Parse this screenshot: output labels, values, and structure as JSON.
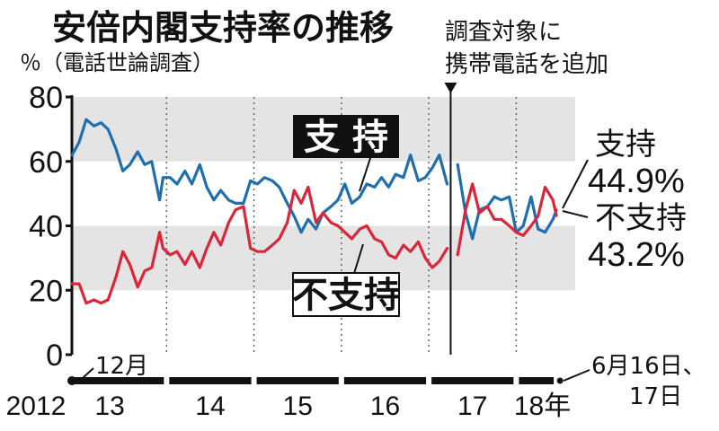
{
  "title": "安倍内閣支持率の推移",
  "subtitle": "％（電話世論調査）",
  "note_lines": [
    "調査対象に",
    "携帯電話を追加"
  ],
  "start_label": "12月",
  "end_label_lines": [
    "6月16日、",
    "17日"
  ],
  "colors": {
    "support": "#1f6faf",
    "nonsupport": "#d9263a",
    "band": "#e4e4e4",
    "axis": "#111111"
  },
  "chart_data": {
    "type": "line",
    "ylim": [
      0,
      80
    ],
    "yticks": [
      0,
      20,
      40,
      60,
      80
    ],
    "xlim": [
      2012.917,
      2018.5
    ],
    "xticks": [
      {
        "label": "2012",
        "x": 2012.5
      },
      {
        "label": "13",
        "x": 2013.35
      },
      {
        "label": "14",
        "x": 2014.5
      },
      {
        "label": "15",
        "x": 2015.5
      },
      {
        "label": "16",
        "x": 2016.5
      },
      {
        "label": "17",
        "x": 2017.5
      },
      {
        "label": "18年",
        "x": 2018.3
      }
    ],
    "year_boundaries": [
      2014,
      2015,
      2016,
      2017,
      2018
    ],
    "method_change_x": 2017.25,
    "series": [
      {
        "name": "支持",
        "box_label": "支 持",
        "end_value": "44.9%",
        "points": [
          [
            2012.92,
            62
          ],
          [
            2013.0,
            66
          ],
          [
            2013.08,
            73
          ],
          [
            2013.17,
            71
          ],
          [
            2013.25,
            72
          ],
          [
            2013.33,
            70
          ],
          [
            2013.42,
            64
          ],
          [
            2013.5,
            57
          ],
          [
            2013.58,
            59
          ],
          [
            2013.67,
            63
          ],
          [
            2013.75,
            59
          ],
          [
            2013.83,
            60
          ],
          [
            2013.92,
            48
          ],
          [
            2013.96,
            55
          ],
          [
            2014.04,
            55
          ],
          [
            2014.12,
            53
          ],
          [
            2014.21,
            57
          ],
          [
            2014.29,
            53
          ],
          [
            2014.38,
            59
          ],
          [
            2014.46,
            52
          ],
          [
            2014.54,
            48
          ],
          [
            2014.62,
            51
          ],
          [
            2014.71,
            48
          ],
          [
            2014.79,
            47
          ],
          [
            2014.88,
            47
          ],
          [
            2014.96,
            54
          ],
          [
            2015.04,
            53
          ],
          [
            2015.12,
            55
          ],
          [
            2015.21,
            54
          ],
          [
            2015.29,
            52
          ],
          [
            2015.38,
            47
          ],
          [
            2015.46,
            43
          ],
          [
            2015.54,
            38
          ],
          [
            2015.62,
            42
          ],
          [
            2015.71,
            39
          ],
          [
            2015.79,
            44
          ],
          [
            2015.88,
            46
          ],
          [
            2015.96,
            48
          ],
          [
            2016.04,
            53
          ],
          [
            2016.12,
            47
          ],
          [
            2016.21,
            49
          ],
          [
            2016.29,
            53
          ],
          [
            2016.38,
            52
          ],
          [
            2016.46,
            55
          ],
          [
            2016.54,
            52
          ],
          [
            2016.62,
            56
          ],
          [
            2016.71,
            55
          ],
          [
            2016.79,
            62
          ],
          [
            2016.88,
            54
          ],
          [
            2016.96,
            55
          ],
          [
            2017.04,
            58
          ],
          [
            2017.12,
            62
          ],
          [
            2017.21,
            53
          ],
          null,
          [
            2017.33,
            59
          ],
          [
            2017.42,
            44
          ],
          [
            2017.5,
            36
          ],
          [
            2017.58,
            45
          ],
          [
            2017.67,
            46
          ],
          [
            2017.75,
            49
          ],
          [
            2017.83,
            48
          ],
          [
            2017.92,
            49
          ],
          [
            2018.0,
            38
          ],
          [
            2018.08,
            40
          ],
          [
            2018.17,
            49
          ],
          [
            2018.25,
            39
          ],
          [
            2018.33,
            38
          ],
          [
            2018.42,
            42
          ],
          [
            2018.46,
            44.9
          ]
        ]
      },
      {
        "name": "不支持",
        "box_label": "不支持",
        "end_value": "43.2%",
        "points": [
          [
            2012.92,
            22
          ],
          [
            2013.0,
            22
          ],
          [
            2013.08,
            16
          ],
          [
            2013.17,
            17
          ],
          [
            2013.25,
            16
          ],
          [
            2013.33,
            17
          ],
          [
            2013.42,
            24
          ],
          [
            2013.5,
            32
          ],
          [
            2013.58,
            28
          ],
          [
            2013.67,
            21
          ],
          [
            2013.75,
            26
          ],
          [
            2013.83,
            27
          ],
          [
            2013.92,
            38
          ],
          [
            2013.96,
            33
          ],
          [
            2014.04,
            31
          ],
          [
            2014.12,
            32
          ],
          [
            2014.21,
            28
          ],
          [
            2014.29,
            32
          ],
          [
            2014.38,
            27
          ],
          [
            2014.46,
            33
          ],
          [
            2014.54,
            38
          ],
          [
            2014.62,
            34
          ],
          [
            2014.71,
            41
          ],
          [
            2014.79,
            45
          ],
          [
            2014.88,
            46
          ],
          [
            2014.96,
            33
          ],
          [
            2015.04,
            32
          ],
          [
            2015.12,
            32
          ],
          [
            2015.21,
            34
          ],
          [
            2015.29,
            36
          ],
          [
            2015.38,
            41
          ],
          [
            2015.46,
            51
          ],
          [
            2015.54,
            47
          ],
          [
            2015.62,
            52
          ],
          [
            2015.71,
            41
          ],
          [
            2015.79,
            44
          ],
          [
            2015.88,
            41
          ],
          [
            2015.96,
            40
          ],
          [
            2016.04,
            38
          ],
          [
            2016.12,
            36
          ],
          [
            2016.21,
            39
          ],
          [
            2016.29,
            40
          ],
          [
            2016.38,
            36
          ],
          [
            2016.46,
            35
          ],
          [
            2016.54,
            31
          ],
          [
            2016.62,
            30
          ],
          [
            2016.71,
            34
          ],
          [
            2016.79,
            32
          ],
          [
            2016.88,
            35
          ],
          [
            2016.96,
            30
          ],
          [
            2017.04,
            27
          ],
          [
            2017.12,
            29
          ],
          [
            2017.21,
            33
          ],
          null,
          [
            2017.33,
            31
          ],
          [
            2017.42,
            45
          ],
          [
            2017.5,
            53
          ],
          [
            2017.58,
            44
          ],
          [
            2017.67,
            46
          ],
          [
            2017.75,
            42
          ],
          [
            2017.83,
            42
          ],
          [
            2017.92,
            40
          ],
          [
            2018.0,
            38
          ],
          [
            2018.08,
            37
          ],
          [
            2018.17,
            40
          ],
          [
            2018.25,
            43
          ],
          [
            2018.33,
            52
          ],
          [
            2018.42,
            48
          ],
          [
            2018.46,
            43.2
          ]
        ]
      }
    ]
  }
}
